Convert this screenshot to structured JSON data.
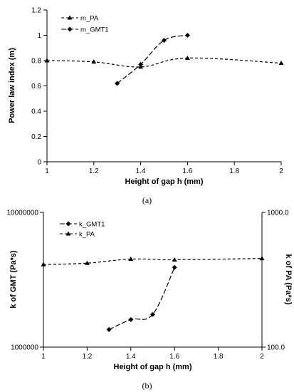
{
  "chart_data": [
    {
      "type": "line",
      "caption": "(a)",
      "xlabel": "Height of gap h (mm)",
      "ylabel": "Power law index (m)",
      "xlim": [
        1,
        2
      ],
      "ylim": [
        0,
        1.2
      ],
      "x_ticks": [
        "1",
        "1.2",
        "1.4",
        "1.6",
        "1.8",
        "2"
      ],
      "y_ticks": [
        "0",
        "0.2",
        "0.4",
        "0.6",
        "0.8",
        "1",
        "1.2"
      ],
      "legend_placement": "top-left",
      "series": [
        {
          "name": "m_PA",
          "marker": "triangle",
          "dash": "dashed",
          "x": [
            1.0,
            1.2,
            1.4,
            1.6,
            2.0
          ],
          "y": [
            0.8,
            0.79,
            0.75,
            0.82,
            0.78
          ]
        },
        {
          "name": "m_GMT1",
          "marker": "diamond",
          "dash": "long-dash",
          "x": [
            1.3,
            1.4,
            1.5,
            1.6
          ],
          "y": [
            0.62,
            0.77,
            0.96,
            1.0
          ]
        }
      ]
    },
    {
      "type": "line",
      "caption": "(b)",
      "xlabel": "Height of gap h (mm)",
      "ylabel": "k of GMT (Pa*s)",
      "ylabel_right": "k of PA (Pa*s)",
      "xlim": [
        1,
        2
      ],
      "ylim_left": [
        1000000,
        10000000
      ],
      "ylim_right": [
        100,
        1000
      ],
      "y_scale": "log",
      "x_ticks": [
        "1",
        "1.2",
        "1.4",
        "1.6",
        "1.8",
        "2"
      ],
      "y_ticks_left": [
        "10000000",
        "1000000"
      ],
      "y_ticks_right": [
        "1000.0",
        "100.0"
      ],
      "legend_placement": "top-left",
      "series": [
        {
          "name": "k_GMT1",
          "axis": "left",
          "marker": "diamond",
          "dash": "long-dash",
          "x": [
            1.3,
            1.4,
            1.5,
            1.6
          ],
          "y": [
            1350000,
            1600000,
            1750000,
            3900000
          ]
        },
        {
          "name": "k_PA",
          "axis": "right",
          "marker": "triangle",
          "dash": "dashed",
          "x": [
            1.0,
            1.2,
            1.4,
            1.6,
            2.0
          ],
          "y": [
            410,
            420,
            450,
            445,
            455
          ]
        }
      ]
    }
  ]
}
